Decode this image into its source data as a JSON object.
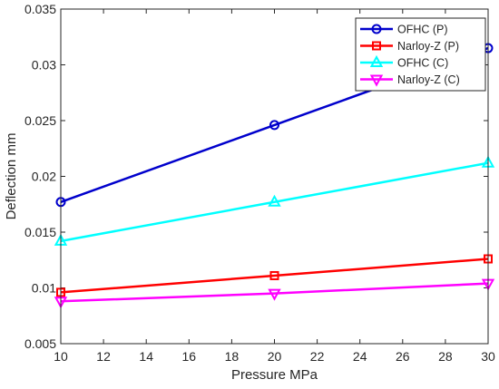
{
  "chart_data": {
    "type": "line",
    "xlabel": "Pressure MPa",
    "ylabel": "Deflection mm",
    "xlim": [
      10,
      30
    ],
    "ylim": [
      0.005,
      0.035
    ],
    "x_ticks": [
      "10",
      "12",
      "14",
      "16",
      "18",
      "20",
      "22",
      "24",
      "26",
      "28",
      "30"
    ],
    "y_ticks": [
      "0.005",
      "0.01",
      "0.015",
      "0.02",
      "0.025",
      "0.03",
      "0.035"
    ],
    "grid": false,
    "legend_position": "top-right",
    "x": [
      10,
      20,
      30
    ],
    "series": [
      {
        "name": "OFHC (P)",
        "values": [
          0.0177,
          0.0246,
          0.0315
        ],
        "color": "#0000cc",
        "marker": "circle"
      },
      {
        "name": "Narloy-Z (P)",
        "values": [
          0.0096,
          0.0111,
          0.0126
        ],
        "color": "#ff0000",
        "marker": "square"
      },
      {
        "name": "OFHC (C)",
        "values": [
          0.0142,
          0.0177,
          0.0212
        ],
        "color": "#00ffff",
        "marker": "triangle-up"
      },
      {
        "name": "Narloy-Z (C)",
        "values": [
          0.0088,
          0.0095,
          0.0104
        ],
        "color": "#ff00ff",
        "marker": "triangle-down"
      }
    ]
  }
}
